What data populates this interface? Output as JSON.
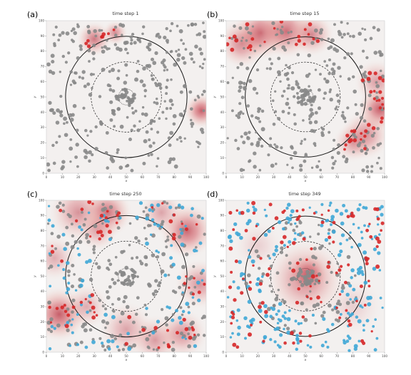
{
  "chart_data": [
    {
      "type": "scatter",
      "panel_label": "(a)",
      "title": "time step 1",
      "xlabel": "x",
      "ylabel": "y",
      "xlim": [
        0,
        100
      ],
      "ylim": [
        0,
        100
      ],
      "xticks": [
        0,
        10,
        20,
        30,
        40,
        50,
        60,
        70,
        80,
        90,
        100
      ],
      "yticks": [
        0,
        10,
        20,
        30,
        40,
        50,
        60,
        70,
        80,
        90,
        100
      ],
      "circles": [
        {
          "cx": 50,
          "cy": 50,
          "r": 38,
          "style": "solid"
        },
        {
          "cx": 50,
          "cy": 50,
          "r": 22,
          "style": "dashed"
        },
        {
          "cx": 50,
          "cy": 50,
          "r": 5,
          "style": "dotted"
        }
      ],
      "heat_spots": [
        {
          "x": 30,
          "y": 88,
          "r": 7,
          "intensity": 0.7
        },
        {
          "x": 43,
          "y": 92,
          "r": 5,
          "intensity": 0.6
        },
        {
          "x": 97,
          "y": 41,
          "r": 7,
          "intensity": 0.85
        }
      ],
      "series": [
        {
          "name": "",
          "color": "#888888",
          "seed": 11,
          "count": 330,
          "region": "all"
        },
        {
          "name": "",
          "color": "#888888",
          "seed": 12,
          "count": 30,
          "region": "center"
        },
        {
          "name": "",
          "color": "#d62728",
          "seed": 13,
          "count": 8,
          "region": "spots"
        }
      ]
    },
    {
      "type": "scatter",
      "panel_label": "(b)",
      "title": "time step 15",
      "xlabel": "x",
      "ylabel": "y",
      "xlim": [
        0,
        100
      ],
      "ylim": [
        0,
        100
      ],
      "xticks": [
        0,
        10,
        20,
        30,
        40,
        50,
        60,
        70,
        80,
        90,
        100
      ],
      "yticks": [
        0,
        10,
        20,
        30,
        40,
        50,
        60,
        70,
        80,
        90,
        100
      ],
      "circles": [
        {
          "cx": 50,
          "cy": 50,
          "r": 38,
          "style": "solid"
        },
        {
          "cx": 50,
          "cy": 50,
          "r": 22,
          "style": "dashed"
        },
        {
          "cx": 50,
          "cy": 50,
          "r": 5,
          "style": "dotted"
        }
      ],
      "heat_spots": [
        {
          "x": 10,
          "y": 85,
          "r": 10,
          "intensity": 0.65
        },
        {
          "x": 22,
          "y": 92,
          "r": 11,
          "intensity": 0.8
        },
        {
          "x": 38,
          "y": 93,
          "r": 11,
          "intensity": 0.75
        },
        {
          "x": 54,
          "y": 91,
          "r": 9,
          "intensity": 0.6
        },
        {
          "x": 95,
          "y": 60,
          "r": 9,
          "intensity": 0.5
        },
        {
          "x": 97,
          "y": 42,
          "r": 9,
          "intensity": 0.85
        },
        {
          "x": 88,
          "y": 25,
          "r": 10,
          "intensity": 0.6
        },
        {
          "x": 80,
          "y": 20,
          "r": 8,
          "intensity": 0.45
        }
      ],
      "series": [
        {
          "name": "",
          "color": "#888888",
          "seed": 21,
          "count": 310,
          "region": "all"
        },
        {
          "name": "",
          "color": "#888888",
          "seed": 22,
          "count": 30,
          "region": "center"
        },
        {
          "name": "",
          "color": "#d62728",
          "seed": 23,
          "count": 55,
          "region": "spots"
        }
      ]
    },
    {
      "type": "scatter",
      "panel_label": "(c)",
      "title": "time step 250",
      "xlabel": "x",
      "ylabel": "y",
      "xlim": [
        0,
        100
      ],
      "ylim": [
        0,
        100
      ],
      "xticks": [
        0,
        10,
        20,
        30,
        40,
        50,
        60,
        70,
        80,
        90,
        100
      ],
      "yticks": [
        0,
        10,
        20,
        30,
        40,
        50,
        60,
        70,
        80,
        90,
        100
      ],
      "circles": [
        {
          "cx": 50,
          "cy": 50,
          "r": 38,
          "style": "solid"
        },
        {
          "cx": 50,
          "cy": 50,
          "r": 22,
          "style": "dashed"
        },
        {
          "cx": 50,
          "cy": 50,
          "r": 5,
          "style": "dotted"
        }
      ],
      "heat_spots": [
        {
          "x": 20,
          "y": 92,
          "r": 12,
          "intensity": 0.55
        },
        {
          "x": 38,
          "y": 92,
          "r": 10,
          "intensity": 0.75
        },
        {
          "x": 32,
          "y": 80,
          "r": 8,
          "intensity": 0.45
        },
        {
          "x": 72,
          "y": 92,
          "r": 9,
          "intensity": 0.45
        },
        {
          "x": 88,
          "y": 80,
          "r": 11,
          "intensity": 0.8
        },
        {
          "x": 5,
          "y": 62,
          "r": 9,
          "intensity": 0.4
        },
        {
          "x": 8,
          "y": 25,
          "r": 11,
          "intensity": 0.85
        },
        {
          "x": 25,
          "y": 30,
          "r": 9,
          "intensity": 0.4
        },
        {
          "x": 50,
          "y": 15,
          "r": 11,
          "intensity": 0.45
        },
        {
          "x": 68,
          "y": 8,
          "r": 10,
          "intensity": 0.5
        },
        {
          "x": 85,
          "y": 12,
          "r": 10,
          "intensity": 0.55
        },
        {
          "x": 96,
          "y": 45,
          "r": 10,
          "intensity": 0.55
        }
      ],
      "series": [
        {
          "name": "",
          "color": "#888888",
          "seed": 31,
          "count": 230,
          "region": "all"
        },
        {
          "name": "",
          "color": "#888888",
          "seed": 32,
          "count": 30,
          "region": "center"
        },
        {
          "name": "",
          "color": "#3fa7d6",
          "seed": 33,
          "count": 110,
          "region": "outer"
        },
        {
          "name": "",
          "color": "#d62728",
          "seed": 34,
          "count": 70,
          "region": "spots"
        }
      ]
    },
    {
      "type": "scatter",
      "panel_label": "(d)",
      "title": "time step 349",
      "xlabel": "x",
      "ylabel": "y",
      "xlim": [
        0,
        100
      ],
      "ylim": [
        0,
        100
      ],
      "xticks": [
        0,
        10,
        20,
        30,
        40,
        50,
        60,
        70,
        80,
        90,
        100
      ],
      "yticks": [
        0,
        10,
        20,
        30,
        40,
        50,
        60,
        70,
        80,
        90,
        100
      ],
      "circles": [
        {
          "cx": 50,
          "cy": 50,
          "r": 38,
          "style": "solid"
        },
        {
          "cx": 50,
          "cy": 50,
          "r": 22,
          "style": "dashed"
        },
        {
          "cx": 50,
          "cy": 50,
          "r": 5,
          "style": "dotted"
        }
      ],
      "heat_spots": [
        {
          "x": 50,
          "y": 48,
          "r": 16,
          "intensity": 0.65
        },
        {
          "x": 52,
          "y": 52,
          "r": 8,
          "intensity": 0.6
        },
        {
          "x": 20,
          "y": 70,
          "r": 10,
          "intensity": 0.2
        },
        {
          "x": 80,
          "y": 30,
          "r": 12,
          "intensity": 0.2
        }
      ],
      "series": [
        {
          "name": "",
          "color": "#888888",
          "seed": 41,
          "count": 110,
          "region": "inner"
        },
        {
          "name": "",
          "color": "#888888",
          "seed": 42,
          "count": 30,
          "region": "center"
        },
        {
          "name": "",
          "color": "#3fa7d6",
          "seed": 43,
          "count": 220,
          "region": "outer"
        },
        {
          "name": "",
          "color": "#d62728",
          "seed": 44,
          "count": 120,
          "region": "all"
        }
      ]
    }
  ]
}
